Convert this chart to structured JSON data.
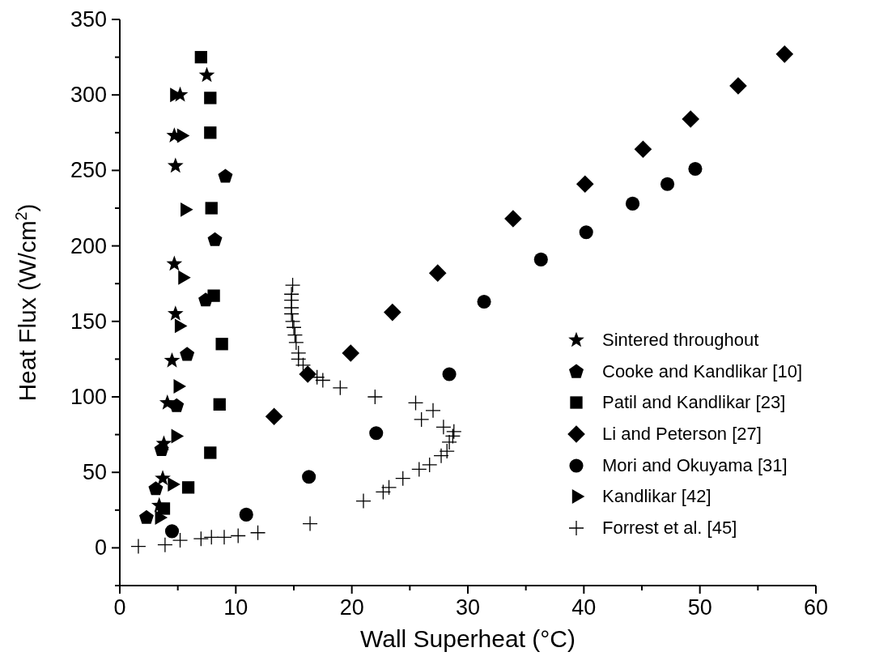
{
  "chart_data": {
    "type": "scatter",
    "xlabel": "Wall Superheat (°C)",
    "ylabel": "Heat Flux (W/cm$^{2}$)",
    "xlim": [
      0,
      60
    ],
    "ylim": [
      -25,
      350
    ],
    "xticks": [
      0,
      {
        "value": 5,
        "label": null
      },
      10,
      {
        "value": 15,
        "label": null
      },
      20,
      {
        "value": 25,
        "label": null
      },
      30,
      {
        "value": 35,
        "label": null
      },
      40,
      {
        "value": 45,
        "label": null
      },
      50,
      {
        "value": 55,
        "label": null
      },
      60
    ],
    "yticks": [
      {
        "value": -25,
        "label": null
      },
      0,
      {
        "value": 25,
        "label": null
      },
      50,
      {
        "value": 75,
        "label": null
      },
      100,
      {
        "value": 125,
        "label": null
      },
      150,
      {
        "value": 175,
        "label": null
      },
      200,
      {
        "value": 225,
        "label": null
      },
      250,
      {
        "value": 275,
        "label": null
      },
      300,
      {
        "value": 325,
        "label": null
      },
      350
    ],
    "grid": false,
    "legend": "right",
    "series": [
      {
        "name": "Sintered throughout",
        "color": "#000000",
        "marker": "star",
        "x": [
          7.5,
          5.2,
          4.7,
          4.8,
          4.7,
          4.8,
          4.5,
          4.1,
          3.8,
          3.7,
          3.4
        ],
        "values": [
          313,
          300,
          273,
          253,
          188,
          155,
          124,
          96,
          69,
          46,
          28
        ]
      },
      {
        "name": "Cooke and Kandlikar [10]",
        "color": "#000000",
        "x": [
          9.1,
          8.2,
          7.4,
          5.8,
          4.9,
          3.6,
          3.1,
          2.3
        ],
        "values": [
          246,
          204,
          164,
          128,
          94,
          65,
          39,
          20
        ]
      },
      {
        "name": "Patil and Kandlikar [23]",
        "color": "#000000",
        "marker": "square",
        "x": [
          7.0,
          7.8,
          7.8,
          7.9,
          8.1,
          8.8,
          8.6,
          7.8,
          5.9,
          3.8
        ],
        "values": [
          325,
          298,
          275,
          225,
          167,
          135,
          95,
          63,
          40,
          26
        ]
      },
      {
        "name": "Li and Peterson [27]",
        "color": "#000000",
        "marker": "diamond",
        "x": [
          13.3,
          16.2,
          19.9,
          23.5,
          27.4,
          33.9,
          40.1,
          45.1,
          49.2,
          53.3,
          57.3
        ],
        "values": [
          87,
          115,
          129,
          156,
          182,
          218,
          241,
          264,
          284,
          306,
          327
        ]
      },
      {
        "name": "Mori and Okuyama [31]",
        "color": "#000000",
        "marker": "circle",
        "x": [
          4.5,
          10.9,
          16.3,
          22.1,
          28.4,
          31.4,
          36.3,
          40.2,
          44.2,
          47.2,
          49.6
        ],
        "values": [
          11,
          22,
          47,
          76,
          115,
          163,
          191,
          209,
          228,
          241,
          251
        ]
      },
      {
        "name": "Kandlikar [42]",
        "color": "#000000",
        "marker": "triangle-right",
        "x": [
          4.7,
          5.3,
          5.6,
          5.4,
          5.1,
          5.0,
          4.8,
          4.5,
          3.4
        ],
        "values": [
          300,
          273,
          224,
          179,
          147,
          107,
          74,
          42,
          20
        ]
      },
      {
        "name": "Forrest et al. [45]",
        "color": "#000000",
        "marker": "cross",
        "x": [
          1.6,
          3.9,
          5.2,
          7.0,
          7.9,
          9.0,
          10.2,
          11.9,
          16.4,
          21.0,
          22.7,
          23.2,
          24.4,
          25.8,
          26.7,
          27.7,
          28.2,
          28.4,
          28.7,
          28.8,
          27.9,
          26.0,
          27.0,
          25.5,
          22.0,
          19.0,
          17.5,
          17.0,
          15.8,
          15.4,
          15.4,
          15.2,
          15.1,
          15.0,
          14.9,
          14.8,
          14.8,
          14.8,
          14.8,
          14.9
        ],
        "values": [
          1,
          2,
          5,
          6,
          7,
          7,
          8,
          10,
          16,
          31,
          37,
          40,
          46,
          52,
          55,
          61,
          64,
          70,
          74,
          77,
          80,
          85,
          91,
          96,
          100,
          106,
          111,
          113,
          121,
          125,
          129,
          136,
          141,
          146,
          150,
          155,
          159,
          164,
          168,
          174
        ]
      }
    ]
  }
}
